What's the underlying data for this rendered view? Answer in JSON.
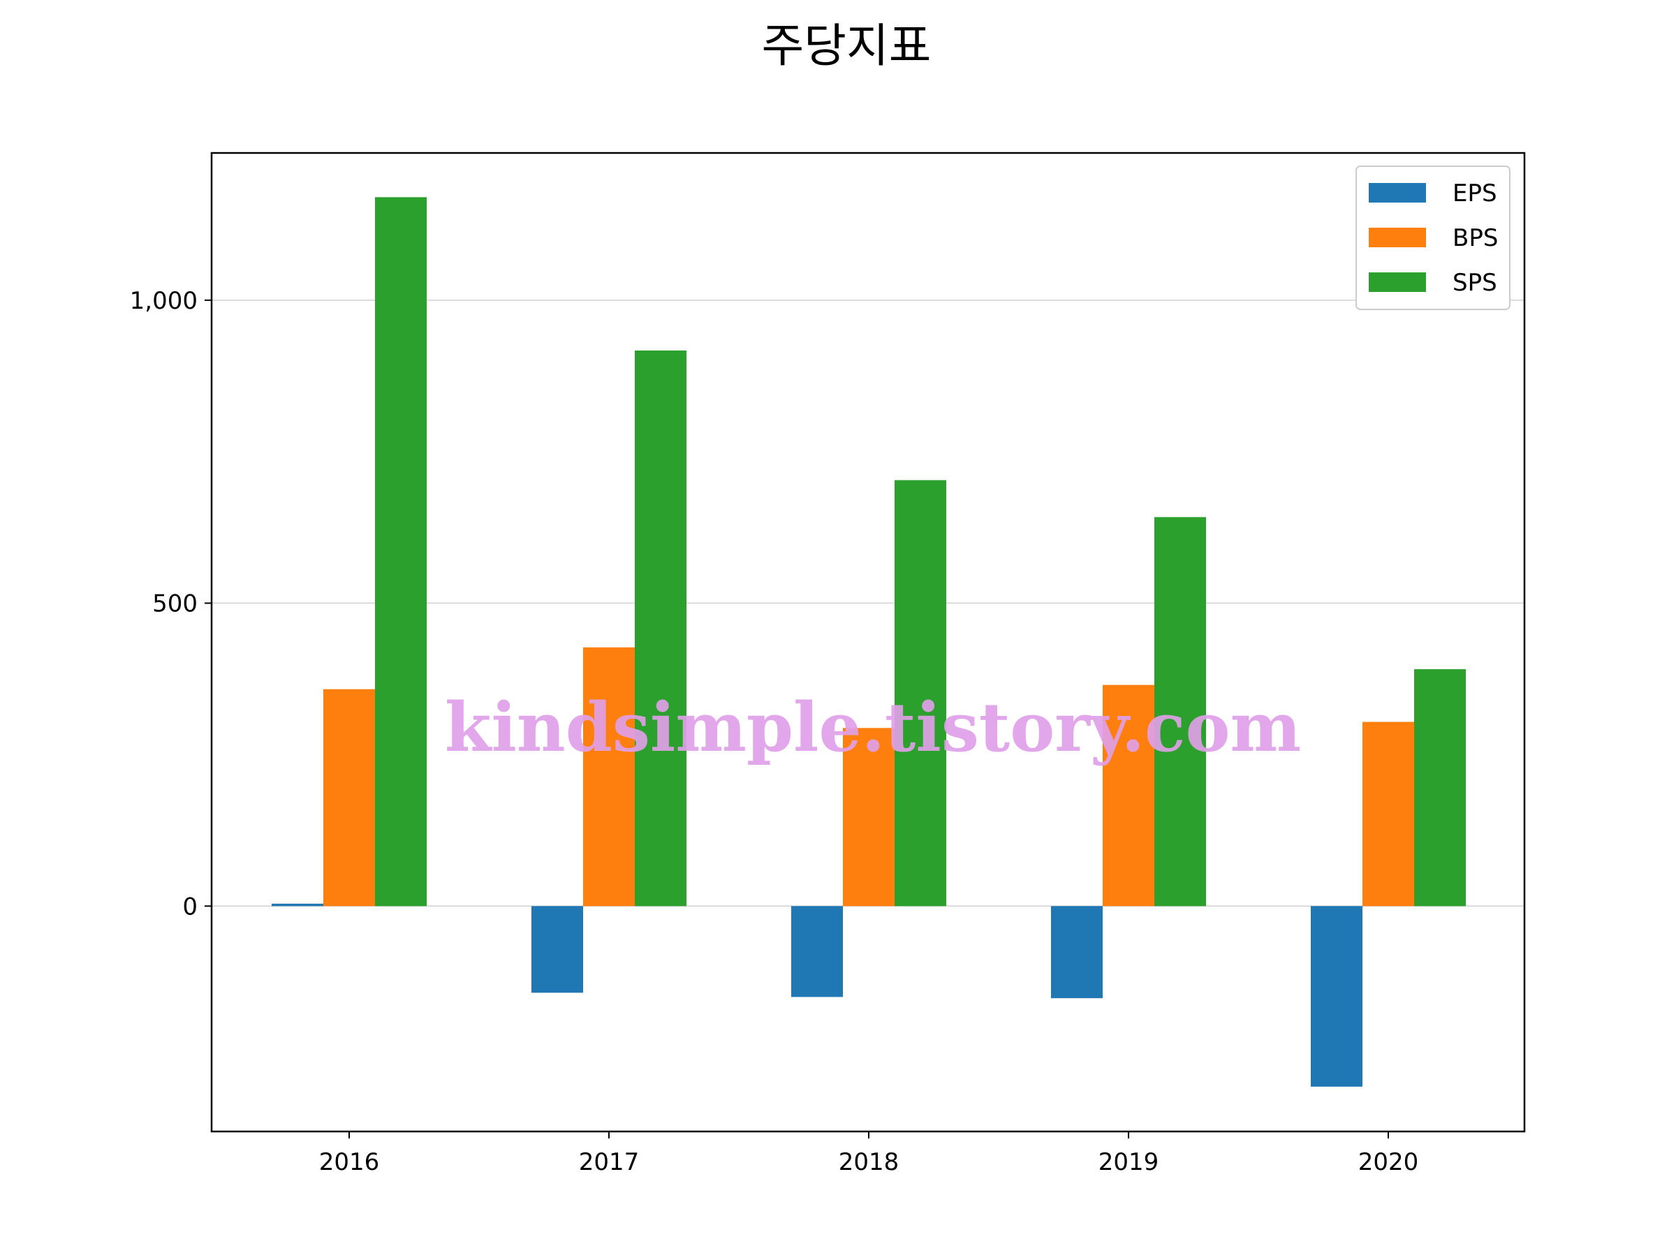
{
  "chart_data": {
    "type": "bar",
    "title": "주당지표",
    "xlabel": "",
    "ylabel": "",
    "categories": [
      "2016",
      "2017",
      "2018",
      "2019",
      "2020"
    ],
    "series": [
      {
        "name": "EPS",
        "color": "#1f77b4",
        "values": [
          4,
          -143,
          -150,
          -152,
          -298
        ]
      },
      {
        "name": "BPS",
        "color": "#ff7f0e",
        "values": [
          358,
          427,
          294,
          365,
          304
        ]
      },
      {
        "name": "SPS",
        "color": "#2ca02c",
        "values": [
          1170,
          917,
          703,
          642,
          391
        ]
      }
    ],
    "ylim": [
      -372,
      1243
    ],
    "yticks": [
      0,
      500,
      1000
    ],
    "ytick_labels": [
      "0",
      "500",
      "1,000"
    ],
    "grid": "y",
    "legend_position": "top-right"
  },
  "watermark": "kindsimple.tistory.com"
}
